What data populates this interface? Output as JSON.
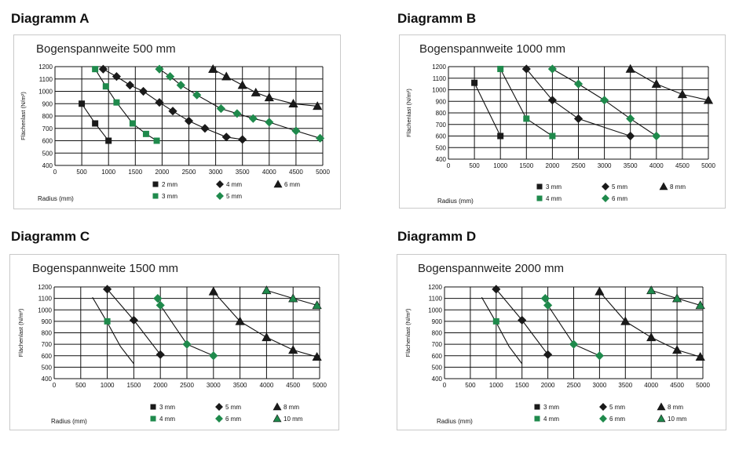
{
  "colors": {
    "green": "#1f8a4c",
    "black": "#1a1a1a",
    "grid": "#111111",
    "box_border": "#c9c9c9"
  },
  "chart_data": [
    {
      "id": "A",
      "panel_label": "Diagramm A",
      "type": "line",
      "title": "Bogenspannweite 500 mm",
      "xlabel": "Radius (mm)",
      "ylabel": "Flächenlast (N/m²)",
      "xlim": [
        0,
        5000
      ],
      "ylim": [
        400,
        1200
      ],
      "x_ticks": [
        "0",
        "500",
        "1000",
        "1500",
        "2000",
        "2500",
        "3000",
        "3500",
        "4000",
        "4500",
        "5000"
      ],
      "y_ticks": [
        "400",
        "500",
        "600",
        "700",
        "800",
        "900",
        "1000",
        "1100",
        "1200"
      ],
      "grid": true,
      "legend_position": "bottom",
      "series": [
        {
          "name": "2 mm",
          "color": "#1a1a1a",
          "marker": "square",
          "x": [
            500,
            750,
            1000
          ],
          "y": [
            900,
            740,
            600
          ]
        },
        {
          "name": "3 mm",
          "color": "#1f8a4c",
          "marker": "square",
          "x": [
            750,
            950,
            1150,
            1450,
            1700,
            1900
          ],
          "y": [
            1180,
            1040,
            910,
            740,
            655,
            600
          ]
        },
        {
          "name": "4 mm",
          "color": "#1a1a1a",
          "marker": "diamond",
          "x": [
            900,
            1150,
            1400,
            1650,
            1950,
            2200,
            2500,
            2800,
            3200,
            3500
          ],
          "y": [
            1180,
            1120,
            1050,
            1000,
            910,
            840,
            760,
            700,
            630,
            610
          ]
        },
        {
          "name": "5 mm",
          "color": "#1f8a4c",
          "marker": "diamond",
          "x": [
            1950,
            2150,
            2350,
            2650,
            3100,
            3400,
            3700,
            4000,
            4500,
            4950
          ],
          "y": [
            1180,
            1120,
            1050,
            970,
            860,
            820,
            780,
            750,
            680,
            620
          ]
        },
        {
          "name": "6 mm",
          "color": "#1a1a1a",
          "marker": "triangle",
          "x": [
            2950,
            3200,
            3500,
            3750,
            4000,
            4450,
            4900
          ],
          "y": [
            1180,
            1120,
            1050,
            990,
            950,
            900,
            880
          ]
        }
      ],
      "legend_rows": [
        [
          {
            "label": "2 mm",
            "color": "#1a1a1a",
            "marker": "square"
          },
          {
            "label": "4 mm",
            "color": "#1a1a1a",
            "marker": "diamond"
          },
          {
            "label": "6 mm",
            "color": "#1a1a1a",
            "marker": "triangle"
          }
        ],
        [
          {
            "label": "3 mm",
            "color": "#1f8a4c",
            "marker": "square"
          },
          {
            "label": "5 mm",
            "color": "#1f8a4c",
            "marker": "diamond"
          }
        ]
      ]
    },
    {
      "id": "B",
      "panel_label": "Diagramm B",
      "type": "line",
      "title": "Bogenspannweite 1000 mm",
      "xlabel": "Radius (mm)",
      "ylabel": "Flächenlast (N/m²)",
      "xlim": [
        0,
        5000
      ],
      "ylim": [
        400,
        1200
      ],
      "x_ticks": [
        "0",
        "500",
        "1000",
        "1500",
        "2000",
        "2500",
        "3000",
        "3500",
        "4000",
        "4500",
        "5000"
      ],
      "y_ticks": [
        "400",
        "500",
        "600",
        "700",
        "800",
        "900",
        "1000",
        "1100",
        "1200"
      ],
      "grid": true,
      "legend_position": "bottom",
      "series": [
        {
          "name": "3 mm",
          "color": "#1a1a1a",
          "marker": "square",
          "x": [
            500,
            1000
          ],
          "y": [
            1060,
            600
          ]
        },
        {
          "name": "4 mm",
          "color": "#1f8a4c",
          "marker": "square",
          "x": [
            1000,
            1500,
            2000
          ],
          "y": [
            1180,
            750,
            600
          ]
        },
        {
          "name": "5 mm",
          "color": "#1a1a1a",
          "marker": "diamond",
          "x": [
            1500,
            2000,
            2500,
            3500
          ],
          "y": [
            1180,
            910,
            750,
            600
          ]
        },
        {
          "name": "6 mm",
          "color": "#1f8a4c",
          "marker": "diamond",
          "x": [
            2000,
            2500,
            3000,
            3500,
            4000
          ],
          "y": [
            1180,
            1050,
            910,
            750,
            600
          ]
        },
        {
          "name": "8 mm",
          "color": "#1a1a1a",
          "marker": "triangle",
          "x": [
            3500,
            4000,
            4500,
            5000
          ],
          "y": [
            1180,
            1050,
            960,
            910
          ]
        }
      ],
      "legend_rows": [
        [
          {
            "label": "3 mm",
            "color": "#1a1a1a",
            "marker": "square"
          },
          {
            "label": "5 mm",
            "color": "#1a1a1a",
            "marker": "diamond"
          },
          {
            "label": "8 mm",
            "color": "#1a1a1a",
            "marker": "triangle"
          }
        ],
        [
          {
            "label": "4 mm",
            "color": "#1f8a4c",
            "marker": "square"
          },
          {
            "label": "6 mm",
            "color": "#1f8a4c",
            "marker": "diamond"
          }
        ]
      ]
    },
    {
      "id": "C",
      "panel_label": "Diagramm C",
      "type": "line",
      "title": "Bogenspannweite 1500 mm",
      "xlabel": "Radius (mm)",
      "ylabel": "Flächenlast (N/m²)",
      "xlim": [
        0,
        5000
      ],
      "ylim": [
        400,
        1200
      ],
      "x_ticks": [
        "0",
        "500",
        "1000",
        "1500",
        "2000",
        "2500",
        "3000",
        "3500",
        "4000",
        "4500",
        "5000"
      ],
      "y_ticks": [
        "400",
        "500",
        "600",
        "700",
        "800",
        "900",
        "1000",
        "1100",
        "1200"
      ],
      "grid": true,
      "legend_position": "bottom",
      "series": [
        {
          "name": "3 mm",
          "color": "#1a1a1a",
          "marker": "none",
          "x": [
            720,
            1000,
            1250,
            1500
          ],
          "y": [
            1110,
            890,
            680,
            530
          ]
        },
        {
          "name": "4 mm",
          "color": "#1f8a4c",
          "marker": "square",
          "x": [
            1000
          ],
          "y": [
            900
          ]
        },
        {
          "name": "5 mm",
          "color": "#1a1a1a",
          "marker": "diamond",
          "x": [
            1000,
            1500,
            2000
          ],
          "y": [
            1180,
            910,
            610
          ]
        },
        {
          "name": "6 mm",
          "color": "#1f8a4c",
          "marker": "diamond",
          "x": [
            1950,
            2000,
            2500,
            3000
          ],
          "y": [
            1100,
            1040,
            700,
            600
          ]
        },
        {
          "name": "8 mm",
          "color": "#1a1a1a",
          "marker": "triangle",
          "x": [
            3000,
            3500,
            4000,
            4500,
            4950
          ],
          "y": [
            1160,
            900,
            760,
            650,
            590
          ]
        },
        {
          "name": "10 mm",
          "color": "#1f8a4c",
          "marker": "triangle",
          "x": [
            4000,
            4500,
            4950
          ],
          "y": [
            1170,
            1100,
            1040
          ]
        }
      ],
      "legend_rows": [
        [
          {
            "label": "3 mm",
            "color": "#1a1a1a",
            "marker": "square"
          },
          {
            "label": "5 mm",
            "color": "#1a1a1a",
            "marker": "diamond"
          },
          {
            "label": "8 mm",
            "color": "#1a1a1a",
            "marker": "triangle"
          }
        ],
        [
          {
            "label": "4 mm",
            "color": "#1f8a4c",
            "marker": "square"
          },
          {
            "label": "6 mm",
            "color": "#1f8a4c",
            "marker": "diamond"
          },
          {
            "label": "10 mm",
            "color": "#1f8a4c",
            "marker": "triangle"
          }
        ]
      ]
    },
    {
      "id": "D",
      "panel_label": "Diagramm D",
      "type": "line",
      "title": "Bogenspannweite 2000 mm",
      "xlabel": "Radius (mm)",
      "ylabel": "Flächenlast (N/m²)",
      "xlim": [
        0,
        5000
      ],
      "ylim": [
        400,
        1200
      ],
      "x_ticks": [
        "0",
        "500",
        "1000",
        "1500",
        "2000",
        "2500",
        "3000",
        "3500",
        "4000",
        "4500",
        "5000"
      ],
      "y_ticks": [
        "400",
        "500",
        "600",
        "700",
        "800",
        "900",
        "1000",
        "1100",
        "1200"
      ],
      "grid": true,
      "legend_position": "bottom",
      "series": [
        {
          "name": "3 mm",
          "color": "#1a1a1a",
          "marker": "none",
          "x": [
            720,
            1000,
            1250,
            1500
          ],
          "y": [
            1110,
            890,
            680,
            530
          ]
        },
        {
          "name": "4 mm",
          "color": "#1f8a4c",
          "marker": "square",
          "x": [
            1000
          ],
          "y": [
            900
          ]
        },
        {
          "name": "5 mm",
          "color": "#1a1a1a",
          "marker": "diamond",
          "x": [
            1000,
            1500,
            2000
          ],
          "y": [
            1180,
            910,
            610
          ]
        },
        {
          "name": "6 mm",
          "color": "#1f8a4c",
          "marker": "diamond",
          "x": [
            1950,
            2000,
            2500,
            3000
          ],
          "y": [
            1100,
            1040,
            700,
            600
          ]
        },
        {
          "name": "8 mm",
          "color": "#1a1a1a",
          "marker": "triangle",
          "x": [
            3000,
            3500,
            4000,
            4500,
            4950
          ],
          "y": [
            1160,
            900,
            760,
            650,
            590
          ]
        },
        {
          "name": "10 mm",
          "color": "#1f8a4c",
          "marker": "triangle",
          "x": [
            4000,
            4500,
            4950
          ],
          "y": [
            1170,
            1100,
            1040
          ]
        }
      ],
      "legend_rows": [
        [
          {
            "label": "3 mm",
            "color": "#1a1a1a",
            "marker": "square"
          },
          {
            "label": "5 mm",
            "color": "#1a1a1a",
            "marker": "diamond"
          },
          {
            "label": "8 mm",
            "color": "#1a1a1a",
            "marker": "triangle"
          }
        ],
        [
          {
            "label": "4 mm",
            "color": "#1f8a4c",
            "marker": "square"
          },
          {
            "label": "6 mm",
            "color": "#1f8a4c",
            "marker": "diamond"
          },
          {
            "label": "10 mm",
            "color": "#1f8a4c",
            "marker": "triangle"
          }
        ]
      ]
    }
  ]
}
